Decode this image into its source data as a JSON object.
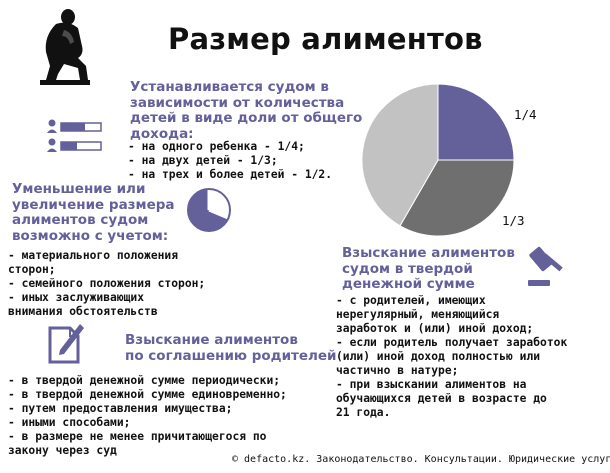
{
  "title": "Размер алиментов",
  "block_share": {
    "heading": [
      "Устанавливается судом в",
      "зависимости от количества",
      "детей в виде доли от общего",
      "дохода:"
    ],
    "items": [
      "- на одного ребенка - 1/4;",
      "- на двух детей - 1/3;",
      "- на трех и более детей - 1/2."
    ]
  },
  "block_reduce": {
    "heading": [
      "Уменьшение или",
      "увеличение размера",
      "алиментов судом",
      "возможно с учетом:"
    ],
    "items": [
      "- материального положения",
      "сторон;",
      "- семейного положения сторон;",
      "- иных заслуживающих",
      "внимания обстоятельств"
    ]
  },
  "block_fixed": {
    "heading": [
      "Взыскание алиментов",
      "судом в твердой",
      "денежной сумме"
    ],
    "items": [
      "- с родителей, имеющих",
      "нерегулярный, меняющийся",
      "заработок и (или) иной доход;",
      "- если родитель получает заработок",
      "(или) иной доход полностью или",
      "частично в натуре;",
      "- при взыскании алиментов на",
      "обучающихся детей в возрасте до",
      "21 года."
    ]
  },
  "block_agreement": {
    "heading": [
      "Взыскание алиментов",
      "по соглашению родителей"
    ],
    "items": [
      "- в твердой денежной сумме периодически;",
      "- в твердой денежной сумме единовременно;",
      "- путем предоставления имущества;",
      "- иными способами;",
      "- в размере не менее причитающегося по",
      "закону через суд"
    ]
  },
  "pie": {
    "label_quarter": "1/4",
    "label_third": "1/3",
    "slices": [
      {
        "fraction": 0.25,
        "color": "#63609a"
      },
      {
        "fraction": 0.3333,
        "color": "#6f6f6f"
      },
      {
        "fraction": 0.4167,
        "color": "#c2c2c2"
      }
    ]
  },
  "footer": "© defacto.kz. Законодательство. Консультации. Юридические услуги",
  "colors": {
    "accent": "#63609a",
    "dark_gray": "#6f6f6f",
    "light_gray": "#c2c2c2"
  },
  "icons": [
    "thinker-statue-icon",
    "people-share-bars-icon",
    "pie-chart-icon",
    "gavel-icon",
    "document-pen-icon"
  ]
}
